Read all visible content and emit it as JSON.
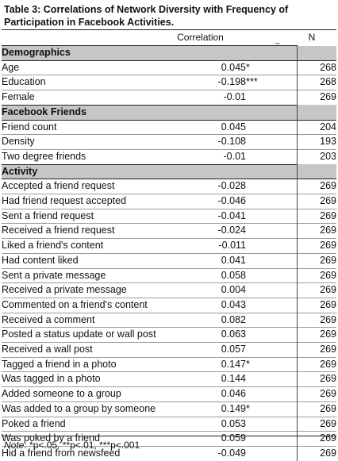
{
  "title": "Table 3: Correlations of Network Diversity with Frequency of Participation in Facebook Activities.",
  "columns": {
    "correlation": "Correlation",
    "marker": "_",
    "n": "N"
  },
  "sections": [
    {
      "heading": "Demographics",
      "rows": [
        {
          "label": "Age",
          "corr": "0.045",
          "sig": "*",
          "n": "268"
        },
        {
          "label": "Education",
          "corr": "-0.198",
          "sig": "***",
          "n": "268"
        },
        {
          "label": "Female",
          "corr": "-0.01",
          "sig": "",
          "n": "269"
        }
      ]
    },
    {
      "heading": "Facebook Friends",
      "rows": [
        {
          "label": "Friend count",
          "corr": "0.045",
          "sig": "",
          "n": "204"
        },
        {
          "label": "Density",
          "corr": "-0.108",
          "sig": "",
          "n": "193"
        },
        {
          "label": "Two degree friends",
          "corr": "-0.01",
          "sig": "",
          "n": "203"
        }
      ]
    },
    {
      "heading": "Activity",
      "rows": [
        {
          "label": "Accepted a friend request",
          "corr": "-0.028",
          "sig": "",
          "n": "269"
        },
        {
          "label": "Had friend request accepted",
          "corr": "-0.046",
          "sig": "",
          "n": "269"
        },
        {
          "label": "Sent a friend request",
          "corr": "-0.041",
          "sig": "",
          "n": "269"
        },
        {
          "label": "Received a friend request",
          "corr": "-0.024",
          "sig": "",
          "n": "269"
        },
        {
          "label": "Liked a friend's content",
          "corr": "-0.011",
          "sig": "",
          "n": "269"
        },
        {
          "label": "Had content liked",
          "corr": "0.041",
          "sig": "",
          "n": "269"
        },
        {
          "label": "Sent a private message",
          "corr": "0.058",
          "sig": "",
          "n": "269"
        },
        {
          "label": "Received a private message",
          "corr": "0.004",
          "sig": "",
          "n": "269"
        },
        {
          "label": "Commented on a friend's content",
          "corr": "0.043",
          "sig": "",
          "n": "269"
        },
        {
          "label": "Received  a comment",
          "corr": "0.082",
          "sig": "",
          "n": "269"
        },
        {
          "label": "Posted a status update or wall post",
          "corr": "0.063",
          "sig": "",
          "n": "269"
        },
        {
          "label": "Received a wall post",
          "corr": "0.057",
          "sig": "",
          "n": "269"
        },
        {
          "label": "Tagged a friend in a photo",
          "corr": "0.147",
          "sig": "*",
          "n": "269"
        },
        {
          "label": "Was tagged in a photo",
          "corr": "0.144",
          "sig": "",
          "n": "269"
        },
        {
          "label": "Added someone to a group",
          "corr": "0.046",
          "sig": "",
          "n": "269"
        },
        {
          "label": "Was added to a group by someone",
          "corr": "0.149",
          "sig": "*",
          "n": "269"
        },
        {
          "label": "Poked a friend",
          "corr": "0.053",
          "sig": "",
          "n": "269"
        },
        {
          "label": "Was poked by a friend",
          "corr": "0.059",
          "sig": "",
          "n": "269"
        },
        {
          "label": "Hid a friend from newsfeed",
          "corr": "-0.049",
          "sig": "",
          "n": "269"
        }
      ]
    }
  ],
  "note": {
    "label": "Note",
    "text": ": *p<.05, **p<.01, ***p<.001"
  }
}
